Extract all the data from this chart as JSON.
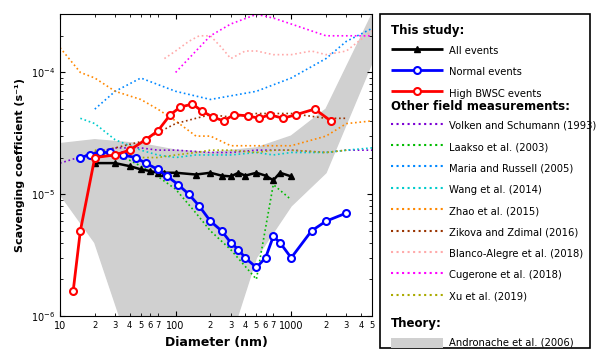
{
  "xlim": [
    10,
    5000
  ],
  "ylim": [
    1e-06,
    0.0003
  ],
  "xlabel": "Diameter (nm)",
  "ylabel": "Scavenging coefficient (s⁻¹)",
  "all_events": {
    "x": [
      20,
      30,
      40,
      50,
      60,
      70,
      80,
      100,
      150,
      200,
      250,
      300,
      350,
      400,
      500,
      600,
      700,
      800,
      1000
    ],
    "y": [
      1.8e-05,
      1.8e-05,
      1.7e-05,
      1.6e-05,
      1.55e-05,
      1.5e-05,
      1.5e-05,
      1.5e-05,
      1.45e-05,
      1.5e-05,
      1.42e-05,
      1.4e-05,
      1.5e-05,
      1.42e-05,
      1.5e-05,
      1.42e-05,
      1.3e-05,
      1.5e-05,
      1.4e-05
    ],
    "color": "#000000",
    "lw": 1.8,
    "ls": "-",
    "marker": "^",
    "ms": 4,
    "label": "All events"
  },
  "normal_events": {
    "x": [
      15,
      18,
      22,
      27,
      35,
      45,
      55,
      70,
      85,
      105,
      130,
      160,
      200,
      250,
      300,
      350,
      400,
      500,
      600,
      700,
      800,
      1000,
      1500,
      2000,
      3000
    ],
    "y": [
      2e-05,
      2.1e-05,
      2.2e-05,
      2.2e-05,
      2.1e-05,
      2e-05,
      1.8e-05,
      1.6e-05,
      1.4e-05,
      1.2e-05,
      1e-05,
      8e-06,
      6e-06,
      5e-06,
      4e-06,
      3.5e-06,
      3e-06,
      2.5e-06,
      3e-06,
      4.5e-06,
      4e-06,
      3e-06,
      5e-06,
      6e-06,
      7e-06
    ],
    "color": "#0000FF",
    "lw": 2.0,
    "ls": "-",
    "marker": "o",
    "ms": 5,
    "label": "Normal events"
  },
  "high_bwsc": {
    "x": [
      13,
      15,
      20,
      30,
      40,
      55,
      70,
      90,
      110,
      140,
      170,
      210,
      260,
      320,
      420,
      530,
      650,
      850,
      1100,
      1600,
      2200
    ],
    "y": [
      1.6e-06,
      5e-06,
      2e-05,
      2.1e-05,
      2.3e-05,
      2.8e-05,
      3.3e-05,
      4.5e-05,
      5.2e-05,
      5.5e-05,
      4.8e-05,
      4.3e-05,
      4e-05,
      4.5e-05,
      4.4e-05,
      4.2e-05,
      4.5e-05,
      4.2e-05,
      4.5e-05,
      5e-05,
      4e-05
    ],
    "color": "#FF0000",
    "lw": 2.0,
    "ls": "-",
    "marker": "o",
    "ms": 5,
    "label": "High BWSC events"
  },
  "volken1993": {
    "x": [
      10,
      20,
      30,
      50,
      70,
      100,
      200,
      300,
      500,
      700,
      1000,
      2000,
      3000,
      5000
    ],
    "y": [
      1.8e-05,
      2.2e-05,
      2.4e-05,
      2.4e-05,
      2.3e-05,
      2.3e-05,
      2.2e-05,
      2.2e-05,
      2.3e-05,
      2.3e-05,
      2.3e-05,
      2.2e-05,
      2.3e-05,
      2.3e-05
    ],
    "color": "#7B00D4",
    "lw": 1.2,
    "ls": ":",
    "label": "Volken and Schumann (1993)"
  },
  "laakso2003": {
    "x": [
      20,
      30,
      40,
      50,
      70,
      100,
      150,
      200,
      300,
      500,
      700,
      1000
    ],
    "y": [
      2.2e-05,
      2.1e-05,
      1.9e-05,
      1.7e-05,
      1.4e-05,
      1.1e-05,
      7e-06,
      5e-06,
      3.5e-06,
      2e-06,
      1.2e-05,
      9e-06
    ],
    "color": "#00BB00",
    "lw": 1.2,
    "ls": ":",
    "label": "Laakso et al. (2003)"
  },
  "maria2005": {
    "x": [
      20,
      30,
      50,
      100,
      200,
      500,
      1000,
      2000,
      3000,
      5000
    ],
    "y": [
      5e-05,
      7e-05,
      9e-05,
      7e-05,
      6e-05,
      7e-05,
      9e-05,
      0.00013,
      0.00018,
      0.00023
    ],
    "color": "#0088FF",
    "lw": 1.2,
    "ls": ":",
    "label": "Maria and Russell (2005)"
  },
  "wang2014": {
    "x": [
      15,
      20,
      30,
      50,
      70,
      100,
      150,
      200,
      300,
      500,
      700,
      1000,
      2000,
      3000,
      5000
    ],
    "y": [
      4.2e-05,
      3.8e-05,
      2.8e-05,
      2.3e-05,
      2.1e-05,
      2e-05,
      2.1e-05,
      2.1e-05,
      2.1e-05,
      2.2e-05,
      2.1e-05,
      2.2e-05,
      2.2e-05,
      2.3e-05,
      2.4e-05
    ],
    "color": "#00CCCC",
    "lw": 1.2,
    "ls": ":",
    "label": "Wang et al. (2014)"
  },
  "zhao2015": {
    "x": [
      10,
      15,
      20,
      30,
      50,
      70,
      100,
      150,
      200,
      300,
      500,
      700,
      1000,
      2000,
      3000,
      5000
    ],
    "y": [
      0.00016,
      0.0001,
      9e-05,
      7e-05,
      6e-05,
      5e-05,
      4e-05,
      3e-05,
      3e-05,
      2.5e-05,
      2.5e-05,
      2.5e-05,
      2.5e-05,
      3e-05,
      3.8e-05,
      4e-05
    ],
    "color": "#FF8800",
    "lw": 1.2,
    "ls": ":",
    "label": "Zhao et al. (2015)"
  },
  "zikova2016": {
    "x": [
      20,
      30,
      50,
      70,
      100,
      150,
      200,
      300,
      500,
      700,
      1000,
      2000,
      3000
    ],
    "y": [
      2.2e-05,
      2.4e-05,
      2.7e-05,
      3.2e-05,
      3.8e-05,
      4.2e-05,
      4.5e-05,
      4.3e-05,
      4.6e-05,
      4.6e-05,
      4.6e-05,
      4.2e-05,
      4.2e-05
    ],
    "color": "#993300",
    "lw": 1.2,
    "ls": ":",
    "label": "Zikova and Zdimal (2016)"
  },
  "blanco2018": {
    "x": [
      80,
      100,
      130,
      160,
      200,
      250,
      300,
      400,
      500,
      700,
      1000,
      1500,
      2000,
      3000,
      5000
    ],
    "y": [
      0.00013,
      0.00015,
      0.00018,
      0.0002,
      0.0002,
      0.00016,
      0.00013,
      0.00015,
      0.00015,
      0.00014,
      0.00014,
      0.00015,
      0.00014,
      0.00015,
      0.00022
    ],
    "color": "#FFAAAA",
    "lw": 1.2,
    "ls": ":",
    "label": "Blanco-Alegre et al. (2018)"
  },
  "cugerone2018": {
    "x": [
      100,
      150,
      200,
      300,
      500,
      700,
      1000,
      2000,
      3000,
      5000
    ],
    "y": [
      0.0001,
      0.00015,
      0.0002,
      0.00025,
      0.0003,
      0.00028,
      0.00025,
      0.0002,
      0.0002,
      0.0002
    ],
    "color": "#FF00FF",
    "lw": 1.2,
    "ls": ":",
    "label": "Cugerone et al. (2018)"
  },
  "xu2019": {
    "x": [
      20,
      30,
      50,
      70,
      100,
      150,
      200,
      300,
      500,
      700,
      1000,
      2000,
      3000
    ],
    "y": [
      2.3e-05,
      2.2e-05,
      2e-05,
      2e-05,
      2.1e-05,
      2.2e-05,
      2.3e-05,
      2.3e-05,
      2.2e-05,
      2.3e-05,
      2.3e-05,
      2.2e-05,
      2.3e-05
    ],
    "color": "#AAAA00",
    "lw": 1.2,
    "ls": ":",
    "label": "Xu et al. (2019)"
  },
  "andronache_upper_x": [
    10,
    20,
    50,
    100,
    200,
    500,
    1000,
    2000,
    5000
  ],
  "andronache_upper_y": [
    2.6e-05,
    2.8e-05,
    2.6e-05,
    2.3e-05,
    2.2e-05,
    2.4e-05,
    3e-05,
    5e-05,
    0.0003
  ],
  "andronache_lower_x": [
    10,
    20,
    50,
    100,
    200,
    500,
    1000,
    2000,
    5000
  ],
  "andronache_lower_y": [
    1e-05,
    4e-06,
    3e-07,
    8e-08,
    2e-07,
    3e-06,
    8e-06,
    1.5e-05,
    0.00012
  ],
  "legend_sections": {
    "this_study": "This study:",
    "other": "Other field measurements:",
    "theory": "Theory:"
  },
  "legend_colors": {
    "volken": "#7B00D4",
    "laakso": "#00BB00",
    "maria": "#0088FF",
    "wang": "#00CCCC",
    "zhao": "#FF8800",
    "zikova": "#993300",
    "blanco": "#FFAAAA",
    "cugerone": "#FF00FF",
    "xu": "#AAAA00"
  }
}
